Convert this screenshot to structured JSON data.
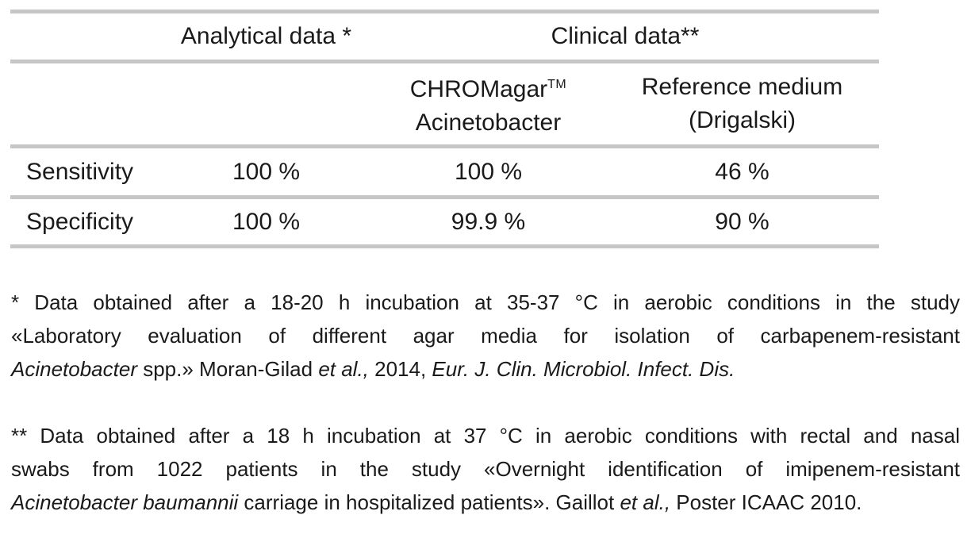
{
  "table": {
    "header_row1": {
      "analytical": "Analytical data *",
      "clinical": "Clinical data**"
    },
    "header_row2": {
      "chromagar_line1": "CHROMagar",
      "chromagar_tm": "TM",
      "chromagar_line2": "Acinetobacter",
      "reference_line1": "Reference medium",
      "reference_line2": "(Drigalski)"
    },
    "rows": [
      {
        "label": "Sensitivity",
        "analytical": "100 %",
        "chromagar": "100 %",
        "reference": "46 %"
      },
      {
        "label": "Specificity",
        "analytical": "100 %",
        "chromagar": "99.9 %",
        "reference": "90 %"
      }
    ]
  },
  "footnotes": [
    {
      "marker": "*",
      "lines": [
        [
          {
            "t": "* Data obtained after a 18-20 h incubation at 35-37 °C in aerobic conditions in the study"
          }
        ],
        [
          {
            "t": "«Laboratory evaluation of different agar media for isolation of carbapenem-resistant"
          }
        ],
        [
          {
            "t": "Acinetobacter",
            "i": true
          },
          {
            "t": " spp.» Moran-Gilad "
          },
          {
            "t": "et al.,",
            "i": true
          },
          {
            "t": " 2014, "
          },
          {
            "t": "Eur. J. Clin. Microbiol. Infect. Dis.",
            "i": true
          }
        ]
      ]
    },
    {
      "marker": "**",
      "lines": [
        [
          {
            "t": "** Data obtained after a 18 h incubation at 37 °C in aerobic conditions with rectal and nasal"
          }
        ],
        [
          {
            "t": "swabs from 1022 patients in the study «Overnight identification of imipenem-resistant"
          }
        ],
        [
          {
            "t": "Acinetobacter baumannii",
            "i": true
          },
          {
            "t": " carriage in hospitalized patients». Gaillot "
          },
          {
            "t": "et al.,",
            "i": true
          },
          {
            "t": " Poster ICAAC 2010."
          }
        ]
      ]
    }
  ],
  "colors": {
    "rule_gray": "#c6c6c6",
    "text": "#1a1a1a",
    "background": "#ffffff"
  }
}
